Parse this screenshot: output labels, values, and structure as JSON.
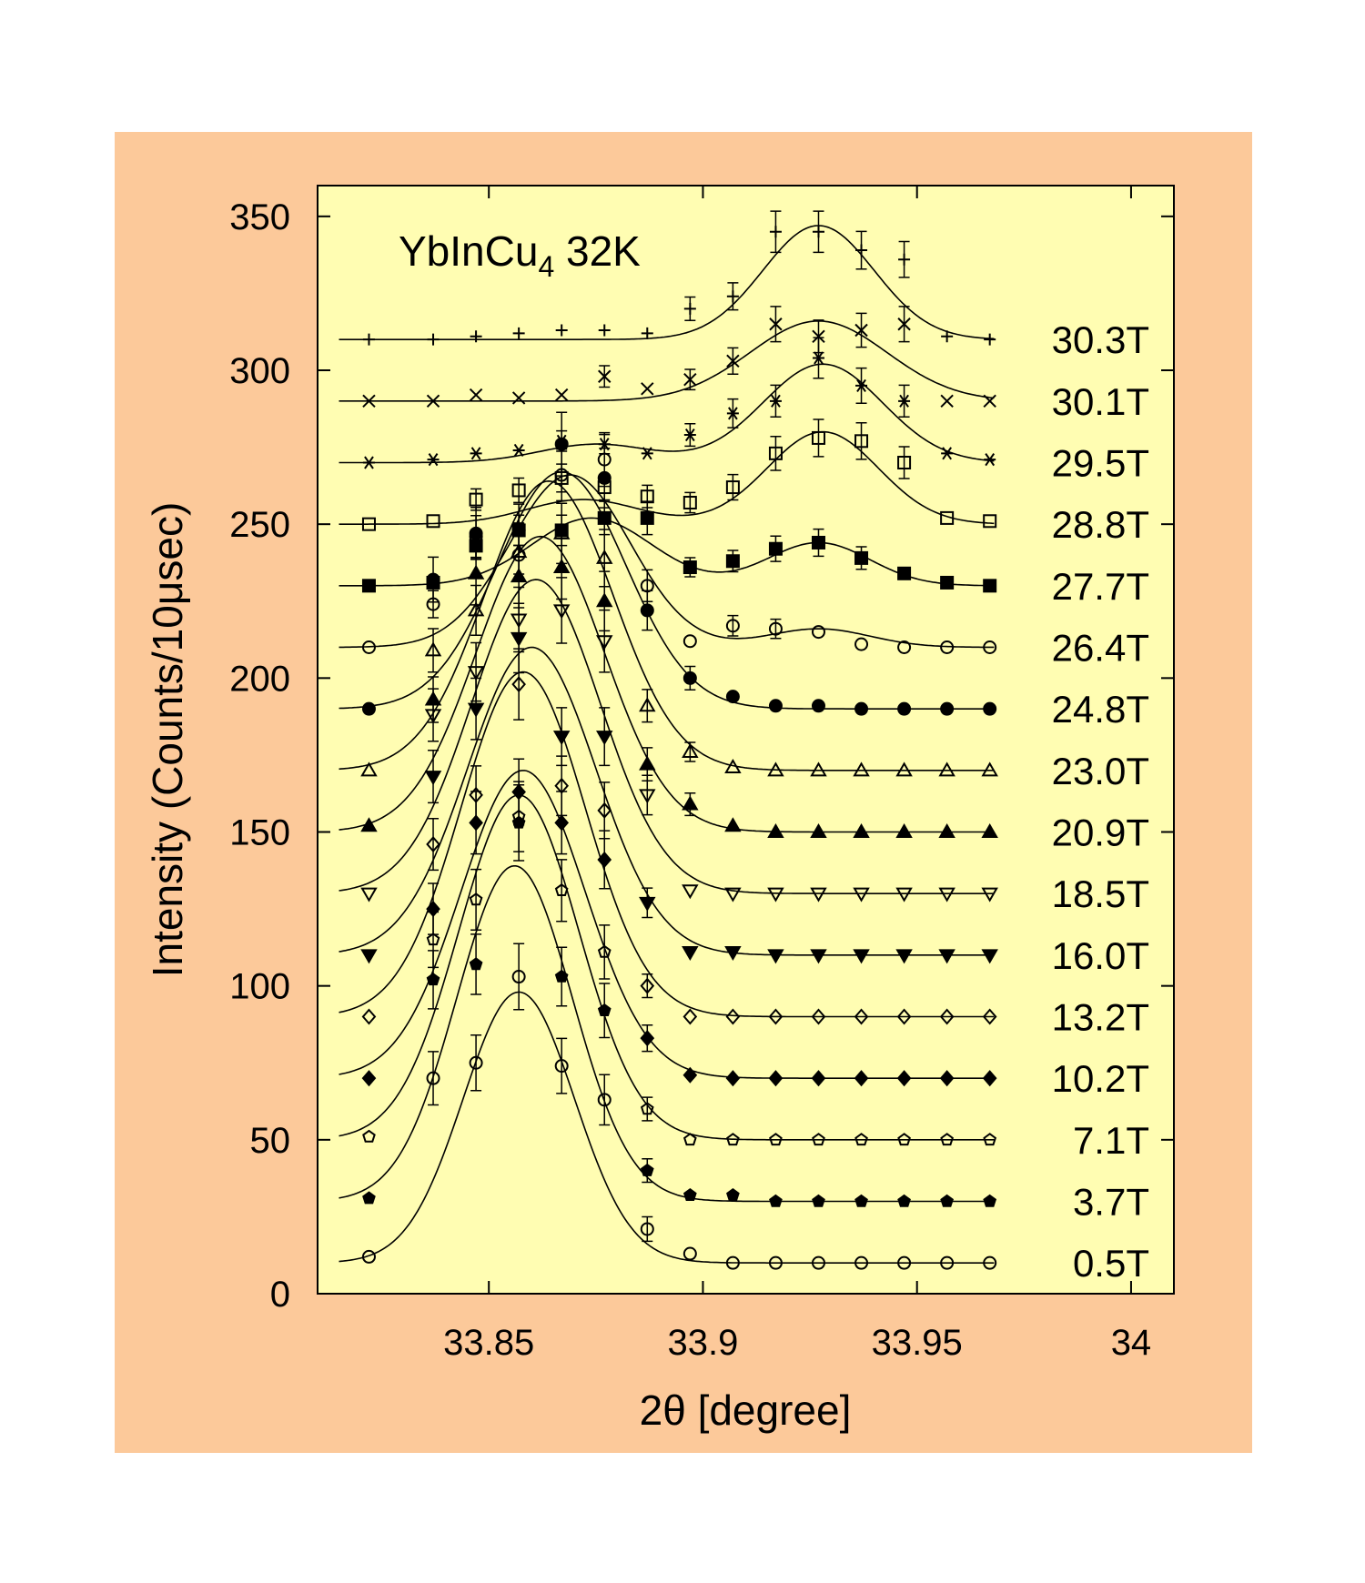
{
  "colors": {
    "outer_background": "#FCC99A",
    "plot_background": "#FFFDB2",
    "ink": "#000000"
  },
  "chart_data": {
    "type": "scatter",
    "title": "YbInCu₄ 32K",
    "title_main": "YbInCu",
    "title_subscript": "4",
    "title_tail": " 32K",
    "xlabel": "2θ [degree]",
    "ylabel": "Intensity (Counts/10μsec)",
    "xlim": [
      33.81,
      34.01
    ],
    "ylim": [
      0,
      360
    ],
    "xticks": [
      33.85,
      33.9,
      33.95,
      34
    ],
    "xtick_labels": [
      "33.85",
      "33.9",
      "33.95",
      "34"
    ],
    "yticks": [
      0,
      50,
      100,
      150,
      200,
      250,
      300,
      350
    ],
    "ytick_labels": [
      "0",
      "50",
      "100",
      "150",
      "200",
      "250",
      "300",
      "350"
    ],
    "grid": false,
    "legend": "series labels at right end of each curve",
    "x": [
      33.822,
      33.837,
      33.847,
      33.857,
      33.867,
      33.877,
      33.887,
      33.897,
      33.907,
      33.917,
      33.927,
      33.937,
      33.947,
      33.957,
      33.967
    ],
    "series": [
      {
        "name": "0.5T",
        "marker": "circle-open",
        "baseline": 10,
        "values": [
          12,
          70,
          75,
          103,
          74,
          63,
          21,
          13,
          10,
          10,
          10,
          10,
          10,
          10,
          10
        ],
        "fit": [
          {
            "center": 33.857,
            "amplitude": 88,
            "width": 0.013
          }
        ]
      },
      {
        "name": "3.7T",
        "marker": "pentagon-filled",
        "baseline": 30,
        "values": [
          31,
          102,
          107,
          153,
          103,
          92,
          40,
          32,
          32,
          30,
          30,
          30,
          30,
          30,
          30
        ],
        "fit": [
          {
            "center": 33.856,
            "amplitude": 109,
            "width": 0.0135
          }
        ]
      },
      {
        "name": "7.1T",
        "marker": "pentagon-open",
        "baseline": 50,
        "values": [
          51,
          115,
          128,
          155,
          131,
          111,
          60,
          50,
          50,
          50,
          50,
          50,
          50,
          50,
          50
        ],
        "fit": [
          {
            "center": 33.857,
            "amplitude": 112,
            "width": 0.014
          }
        ]
      },
      {
        "name": "10.2T",
        "marker": "diamond-filled",
        "baseline": 70,
        "values": [
          70,
          125,
          153,
          163,
          153,
          141,
          83,
          71,
          70,
          70,
          70,
          70,
          70,
          70,
          70
        ],
        "fit": [
          {
            "center": 33.858,
            "amplitude": 100,
            "width": 0.0145
          }
        ]
      },
      {
        "name": "13.2T",
        "marker": "diamond-open",
        "baseline": 90,
        "values": [
          90,
          146,
          162,
          198,
          165,
          157,
          100,
          90,
          90,
          90,
          90,
          90,
          90,
          90,
          90
        ],
        "fit": [
          {
            "center": 33.858,
            "amplitude": 112,
            "width": 0.0145
          }
        ]
      },
      {
        "name": "16.0T",
        "marker": "triangle-down-filled",
        "baseline": 110,
        "values": [
          110,
          168,
          190,
          213,
          181,
          181,
          127,
          111,
          111,
          110,
          110,
          110,
          110,
          110,
          110
        ],
        "fit": [
          {
            "center": 33.86,
            "amplitude": 100,
            "width": 0.015
          }
        ]
      },
      {
        "name": "18.5T",
        "marker": "triangle-down-open",
        "baseline": 130,
        "values": [
          130,
          188,
          202,
          219,
          222,
          212,
          162,
          131,
          130,
          130,
          130,
          130,
          130,
          130,
          130
        ],
        "fit": [
          {
            "center": 33.861,
            "amplitude": 102,
            "width": 0.015
          }
        ]
      },
      {
        "name": "20.9T",
        "marker": "triangle-up-filled",
        "baseline": 150,
        "values": [
          152,
          193,
          234,
          233,
          236,
          225,
          172,
          159,
          152,
          150,
          150,
          150,
          150,
          150,
          150
        ],
        "fit": [
          {
            "center": 33.862,
            "amplitude": 96,
            "width": 0.015
          }
        ]
      },
      {
        "name": "23.0T",
        "marker": "triangle-up-open",
        "baseline": 170,
        "values": [
          170,
          209,
          222,
          241,
          247,
          239,
          191,
          176,
          171,
          170,
          170,
          170,
          170,
          170,
          170
        ],
        "fit": [
          {
            "center": 33.864,
            "amplitude": 94,
            "width": 0.015
          }
        ]
      },
      {
        "name": "24.8T",
        "marker": "circle-filled",
        "baseline": 190,
        "values": [
          190,
          232,
          247,
          248,
          276,
          265,
          222,
          200,
          194,
          191,
          191,
          190,
          190,
          190,
          190
        ],
        "fit": [
          {
            "center": 33.867,
            "amplitude": 77,
            "width": 0.015
          }
        ]
      },
      {
        "name": "26.4T",
        "marker": "circle-open",
        "baseline": 210,
        "values": [
          210,
          224,
          246,
          240,
          266,
          271,
          230,
          212,
          217,
          216,
          215,
          211,
          210,
          210,
          210
        ],
        "fit": [
          {
            "center": 33.869,
            "amplitude": 56,
            "width": 0.014
          },
          {
            "center": 33.927,
            "amplitude": 6,
            "width": 0.012
          }
        ]
      },
      {
        "name": "27.7T",
        "marker": "square-filled",
        "baseline": 230,
        "values": [
          230,
          231,
          243,
          248,
          248,
          252,
          252,
          236,
          238,
          242,
          244,
          239,
          234,
          231,
          230
        ],
        "fit": [
          {
            "center": 33.874,
            "amplitude": 22,
            "width": 0.014
          },
          {
            "center": 33.927,
            "amplitude": 14,
            "width": 0.012
          }
        ]
      },
      {
        "name": "28.8T",
        "marker": "square-open",
        "baseline": 250,
        "values": [
          250,
          251,
          258,
          261,
          265,
          262,
          259,
          257,
          262,
          273,
          278,
          277,
          270,
          252,
          251
        ],
        "fit": [
          {
            "center": 33.872,
            "amplitude": 8,
            "width": 0.013
          },
          {
            "center": 33.928,
            "amplitude": 30,
            "width": 0.013
          }
        ]
      },
      {
        "name": "29.5T",
        "marker": "asterisk",
        "baseline": 270,
        "values": [
          270,
          271,
          273,
          274,
          277,
          276,
          273,
          279,
          286,
          290,
          304,
          295,
          290,
          273,
          271
        ],
        "fit": [
          {
            "center": 33.875,
            "amplitude": 6,
            "width": 0.013
          },
          {
            "center": 33.928,
            "amplitude": 32,
            "width": 0.014
          }
        ]
      },
      {
        "name": "30.1T",
        "marker": "cross",
        "baseline": 290,
        "values": [
          290,
          290,
          292,
          291,
          292,
          298,
          294,
          297,
          303,
          315,
          311,
          313,
          315,
          290,
          290
        ],
        "fit": [
          {
            "center": 33.927,
            "amplitude": 26,
            "width": 0.016
          }
        ]
      },
      {
        "name": "30.3T",
        "marker": "plus",
        "baseline": 310,
        "values": [
          310,
          310,
          311,
          312,
          313,
          313,
          312,
          320,
          324,
          345,
          345,
          339,
          336,
          311,
          310
        ],
        "fit": [
          {
            "center": 33.927,
            "amplitude": 37,
            "width": 0.013
          }
        ]
      }
    ]
  }
}
